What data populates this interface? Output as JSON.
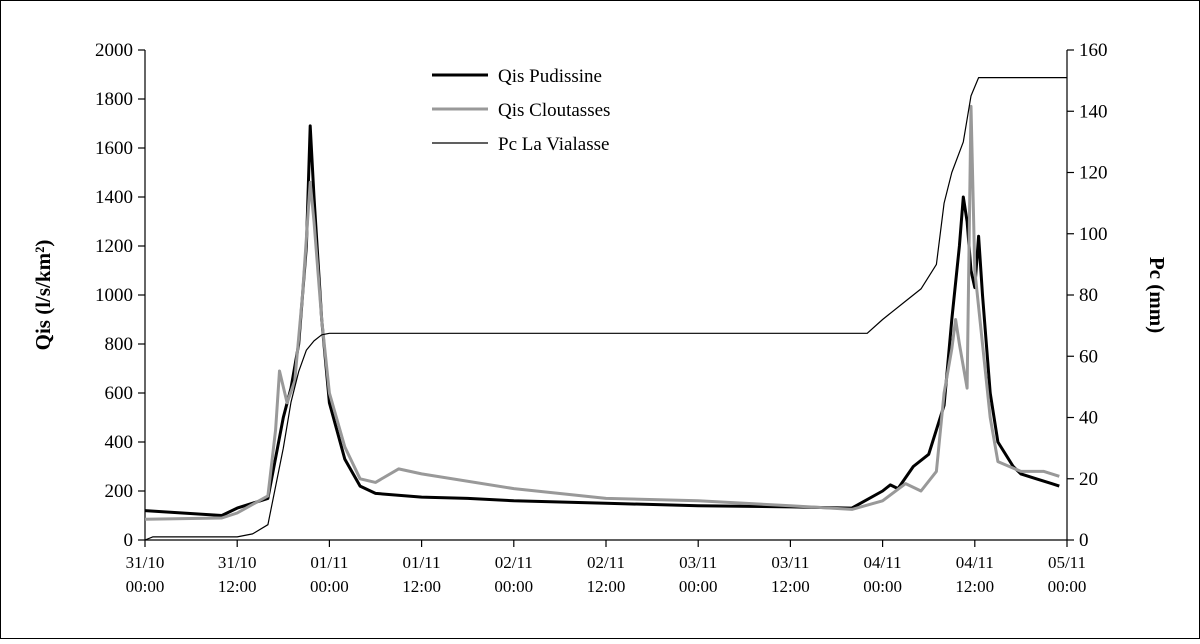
{
  "chart_data": {
    "type": "line",
    "x_label": null,
    "y_label": "Qis (l/s/km²)",
    "y2_label": "Pc (mm)",
    "xlim": [
      "31/10 00:00",
      "05/11 00:00"
    ],
    "xticks": [
      "31/10 00:00",
      "31/10 12:00",
      "01/11 00:00",
      "01/11 12:00",
      "02/11 00:00",
      "02/11 12:00",
      "03/11 00:00",
      "03/11 12:00",
      "04/11 00:00",
      "04/11 12:00",
      "05/11 00:00"
    ],
    "ylim": [
      0,
      2000
    ],
    "yticks": [
      0,
      200,
      400,
      600,
      800,
      1000,
      1200,
      1400,
      1600,
      1800,
      2000
    ],
    "y2lim": [
      0,
      160
    ],
    "y2ticks": [
      0,
      20,
      40,
      60,
      80,
      100,
      120,
      140,
      160
    ],
    "legend": "top-center",
    "series": [
      {
        "name": "Qis Pudissine",
        "color": "#000000",
        "width": 3,
        "x": [
          "31/10 00:00",
          "31/10 10:00",
          "31/10 12:00",
          "31/10 16:00",
          "31/10 18:00",
          "31/10 19:00",
          "31/10 20:00",
          "31/10 21:00",
          "31/10 21:30",
          "31/10 22:00",
          "31/10 23:00",
          "01/11 00:00",
          "01/11 02:00",
          "01/11 04:00",
          "01/11 06:00",
          "01/11 12:00",
          "01/11 18:00",
          "02/11 00:00",
          "02/11 12:00",
          "03/11 00:00",
          "03/11 12:00",
          "03/11 20:00",
          "04/11 00:00",
          "04/11 01:00",
          "04/11 02:00",
          "04/11 04:00",
          "04/11 06:00",
          "04/11 08:00",
          "04/11 09:00",
          "04/11 10:00",
          "04/11 10:30",
          "04/11 11:00",
          "04/11 11:30",
          "04/11 12:00",
          "04/11 12:30",
          "04/11 13:00",
          "04/11 14:00",
          "04/11 15:00",
          "04/11 17:00",
          "04/11 18:00",
          "04/11 20:00",
          "04/11 22:00",
          "04/11 23:00"
        ],
        "values": [
          120,
          100,
          130,
          170,
          500,
          620,
          800,
          1200,
          1690,
          1400,
          900,
          560,
          330,
          220,
          190,
          175,
          170,
          160,
          150,
          140,
          135,
          130,
          200,
          225,
          210,
          300,
          350,
          550,
          900,
          1200,
          1400,
          1300,
          1100,
          1030,
          1240,
          1000,
          600,
          400,
          300,
          270,
          250,
          230,
          220
        ]
      },
      {
        "name": "Qis Cloutasses",
        "color": "#999999",
        "width": 3,
        "x": [
          "31/10 00:00",
          "31/10 10:00",
          "31/10 12:00",
          "31/10 16:00",
          "31/10 17:00",
          "31/10 17:30",
          "31/10 18:30",
          "31/10 19:30",
          "31/10 20:30",
          "31/10 21:30",
          "31/10 22:00",
          "31/10 23:00",
          "01/11 00:00",
          "01/11 02:00",
          "01/11 04:00",
          "01/11 06:00",
          "01/11 09:00",
          "01/11 12:00",
          "02/11 00:00",
          "02/11 12:00",
          "03/11 00:00",
          "03/11 12:00",
          "03/11 20:00",
          "04/11 00:00",
          "04/11 03:00",
          "04/11 05:00",
          "04/11 07:00",
          "04/11 08:00",
          "04/11 09:00",
          "04/11 09:30",
          "04/11 10:00",
          "04/11 11:00",
          "04/11 11:30",
          "04/11 12:00",
          "04/11 13:00",
          "04/11 14:00",
          "04/11 15:00",
          "04/11 18:00",
          "04/11 21:00",
          "04/11 23:00"
        ],
        "values": [
          85,
          90,
          110,
          180,
          450,
          690,
          560,
          650,
          1000,
          1460,
          1300,
          900,
          600,
          380,
          250,
          235,
          290,
          270,
          210,
          170,
          160,
          140,
          125,
          160,
          230,
          200,
          280,
          600,
          780,
          900,
          800,
          620,
          1770,
          1100,
          800,
          500,
          320,
          280,
          280,
          260
        ]
      },
      {
        "name": "Pc La Vialasse",
        "color": "#000000",
        "width": 1.2,
        "axis": "y2",
        "x": [
          "31/10 00:00",
          "31/10 01:00",
          "31/10 12:00",
          "31/10 14:00",
          "31/10 16:00",
          "31/10 18:00",
          "31/10 19:00",
          "31/10 20:00",
          "31/10 21:00",
          "31/10 22:00",
          "31/10 23:00",
          "01/11 00:00",
          "03/11 22:00",
          "04/11 00:00",
          "04/11 03:00",
          "04/11 05:00",
          "04/11 07:00",
          "04/11 08:00",
          "04/11 09:00",
          "04/11 10:30",
          "04/11 11:30",
          "04/11 12:30",
          "05/11 00:00"
        ],
        "values": [
          0,
          1,
          1,
          2,
          5,
          30,
          45,
          55,
          62,
          65,
          67,
          67.5,
          67.5,
          72,
          78,
          82,
          90,
          110,
          120,
          130,
          145,
          151,
          151
        ]
      }
    ]
  }
}
